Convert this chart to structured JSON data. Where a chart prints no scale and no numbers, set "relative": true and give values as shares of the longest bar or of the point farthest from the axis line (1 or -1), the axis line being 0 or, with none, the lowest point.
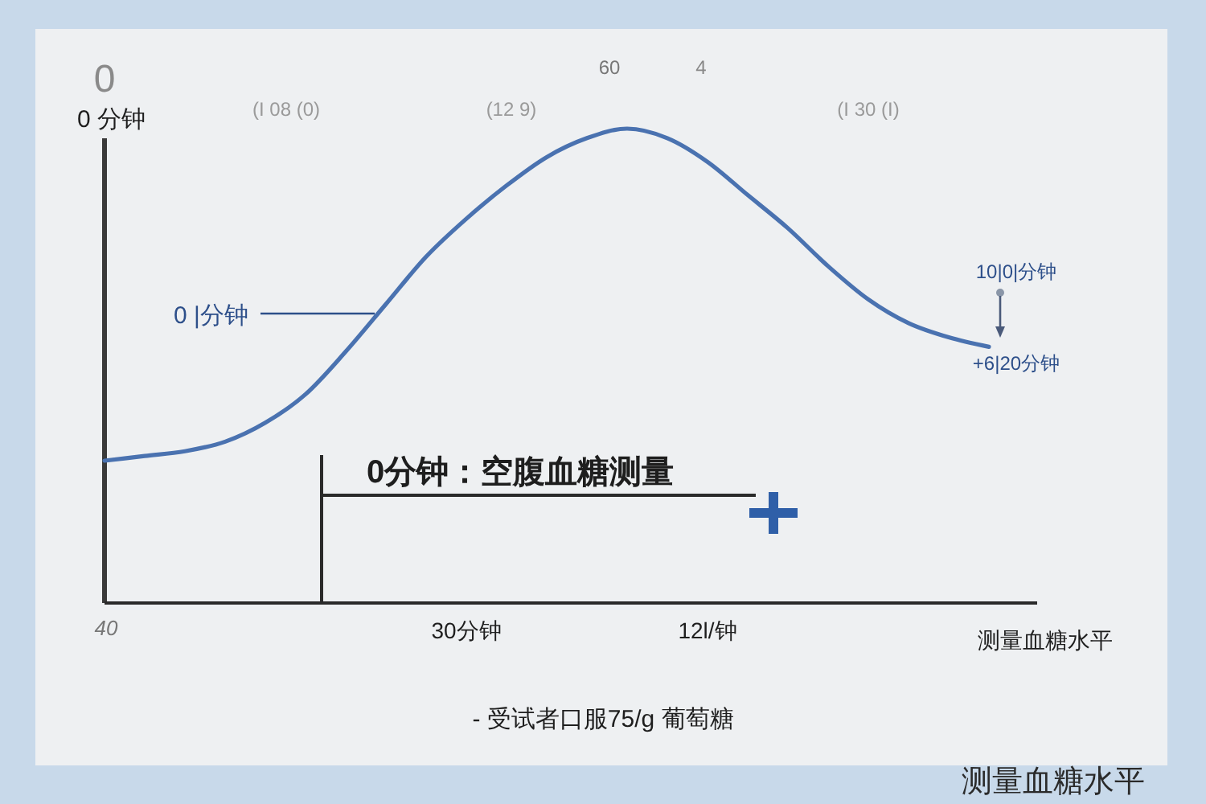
{
  "chart_data": {
    "type": "line",
    "relative": true,
    "ylabel": "0 分钟",
    "xlabel": "测量血糖水平",
    "categories": [
      null,
      null,
      null,
      null,
      null,
      null,
      null,
      null,
      null,
      "30分钟",
      null,
      null,
      null,
      null,
      null,
      "12l/钟",
      null,
      null,
      null,
      null,
      null,
      null,
      null
    ],
    "series": [
      {
        "color": "#4a72b0",
        "values": [
          0.3,
          0.31,
          0.32,
          0.34,
          0.38,
          0.44,
          0.53,
          0.63,
          0.73,
          0.81,
          0.88,
          0.94,
          0.98,
          1.0,
          0.98,
          0.93,
          0.86,
          0.79,
          0.71,
          0.64,
          0.59,
          0.56,
          0.54
        ]
      }
    ],
    "annotations": [
      "0",
      "0 |分钟",
      "0分钟：空腹血糖测量",
      "10|0|分钟",
      "+6|20分钟",
      "- 受试者口服75/g 葡萄糖",
      "测量血糖水平",
      "40",
      "(I 08 (0)",
      "(12 9)",
      "60",
      "4",
      "(I 30 (I)"
    ]
  }
}
